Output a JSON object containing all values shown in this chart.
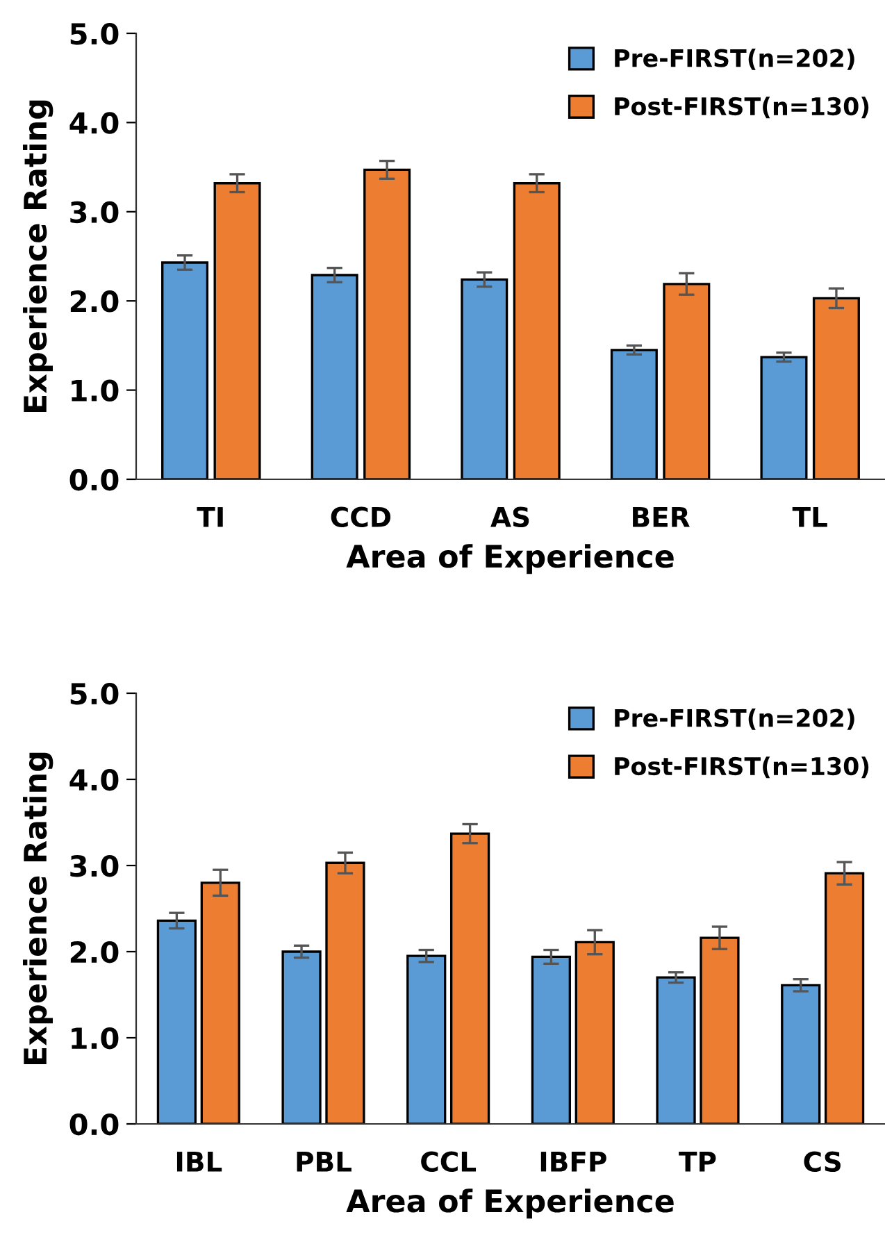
{
  "chart_data": [
    {
      "type": "bar",
      "xlabel": "Area of Experience",
      "ylabel": "Experience Rating",
      "categories": [
        "TI",
        "CCD",
        "AS",
        "BER",
        "TL"
      ],
      "ylim": [
        0,
        5
      ],
      "yticks": [
        {
          "value": 0,
          "label": "0.0"
        },
        {
          "value": 1,
          "label": "1.0"
        },
        {
          "value": 2,
          "label": "2.0"
        },
        {
          "value": 3,
          "label": "3.0"
        },
        {
          "value": 4,
          "label": "4.0"
        },
        {
          "value": 5,
          "label": "5.0"
        }
      ],
      "grid": false,
      "legend": "top right",
      "series": [
        {
          "name": "Pre-FIRST(n=202)",
          "color": "#5b9bd5",
          "values": [
            2.43,
            2.29,
            2.24,
            1.45,
            1.37
          ],
          "errors": [
            0.08,
            0.08,
            0.08,
            0.05,
            0.05
          ]
        },
        {
          "name": "Post-FIRST(n=130)",
          "color": "#ed7d31",
          "values": [
            3.32,
            3.47,
            3.32,
            2.19,
            2.03
          ],
          "errors": [
            0.1,
            0.1,
            0.1,
            0.12,
            0.11
          ]
        }
      ]
    },
    {
      "type": "bar",
      "xlabel": "Area of Experience",
      "ylabel": "Experience Rating",
      "categories": [
        "IBL",
        "PBL",
        "CCL",
        "IBFP",
        "TP",
        "CS"
      ],
      "ylim": [
        0,
        5
      ],
      "yticks": [
        {
          "value": 0,
          "label": "0.0"
        },
        {
          "value": 1,
          "label": "1.0"
        },
        {
          "value": 2,
          "label": "2.0"
        },
        {
          "value": 3,
          "label": "3.0"
        },
        {
          "value": 4,
          "label": "4.0"
        },
        {
          "value": 5,
          "label": "5.0"
        }
      ],
      "grid": false,
      "legend": "top right",
      "series": [
        {
          "name": "Pre-FIRST(n=202)",
          "color": "#5b9bd5",
          "values": [
            2.36,
            2.0,
            1.95,
            1.94,
            1.7,
            1.61
          ],
          "errors": [
            0.09,
            0.07,
            0.07,
            0.08,
            0.06,
            0.07
          ]
        },
        {
          "name": "Post-FIRST(n=130)",
          "color": "#ed7d31",
          "values": [
            2.8,
            3.03,
            3.37,
            2.11,
            2.16,
            2.91
          ],
          "errors": [
            0.15,
            0.12,
            0.11,
            0.14,
            0.13,
            0.13
          ]
        }
      ]
    }
  ]
}
